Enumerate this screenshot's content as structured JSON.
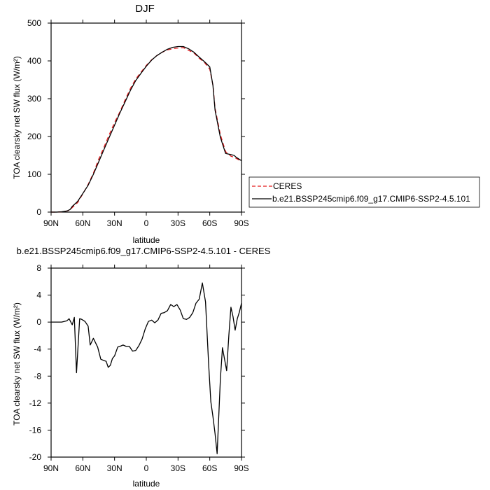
{
  "chart_data": [
    {
      "type": "line",
      "title": "DJF",
      "xlabel": "latitude",
      "ylabel": "TOA clearsky net SW flux (W/m²)",
      "xlim": [
        90,
        -90
      ],
      "ylim": [
        0,
        500
      ],
      "xtick_values": [
        90,
        60,
        30,
        0,
        -30,
        -60,
        -90
      ],
      "xtick_labels": [
        "90N",
        "60N",
        "30N",
        "0",
        "30S",
        "60S",
        "90S"
      ],
      "ytick_values": [
        0,
        100,
        200,
        300,
        400,
        500
      ],
      "ytick_labels": [
        "0",
        "100",
        "200",
        "300",
        "400",
        "500"
      ],
      "legend": {
        "placement": "right",
        "entries": [
          "CERES",
          "b.e21.BSSP245cmip6.f09_g17.CMIP6-SSP2-4.5.101"
        ]
      },
      "series": [
        {
          "name": "CERES",
          "color": "#e41a1c",
          "dash": true,
          "x": [
            90,
            85,
            80,
            75,
            72,
            70,
            65,
            60,
            55,
            50,
            45,
            40,
            35,
            30,
            25,
            20,
            15,
            10,
            5,
            0,
            -5,
            -10,
            -15,
            -20,
            -25,
            -30,
            -35,
            -40,
            -45,
            -50,
            -55,
            -60,
            -63,
            -65,
            -70,
            -75,
            -80,
            -83,
            -85,
            -90
          ],
          "y": [
            0,
            0,
            1,
            3,
            6,
            12,
            25,
            48,
            73,
            103,
            140,
            172,
            205,
            237,
            265,
            297,
            327,
            352,
            370,
            388,
            403,
            414,
            423,
            429,
            432,
            434,
            435,
            428,
            421,
            407,
            396,
            378,
            336,
            275,
            205,
            160,
            148,
            145,
            142,
            134
          ]
        },
        {
          "name": "b.e21.BSSP245cmip6.f09_g17.CMIP6-SSP2-4.5.101",
          "color": "#000000",
          "dash": false,
          "x": [
            90,
            85,
            80,
            75,
            72,
            70,
            65,
            60,
            55,
            50,
            45,
            40,
            35,
            30,
            25,
            20,
            15,
            10,
            5,
            0,
            -5,
            -10,
            -15,
            -20,
            -25,
            -30,
            -35,
            -40,
            -45,
            -50,
            -55,
            -60,
            -63,
            -65,
            -70,
            -75,
            -80,
            -83,
            -85,
            -90
          ],
          "y": [
            0,
            0,
            1,
            3,
            7,
            15,
            28,
            49,
            71,
            100,
            133,
            166,
            198,
            230,
            262,
            292,
            322,
            348,
            367,
            386,
            402,
            414,
            423,
            431,
            436,
            438,
            438,
            432,
            423,
            410,
            398,
            384,
            335,
            270,
            198,
            155,
            152,
            150,
            145,
            136
          ]
        }
      ]
    },
    {
      "type": "line",
      "title": "b.e21.BSSP245cmip6.f09_g17.CMIP6-SSP2-4.5.101 - CERES",
      "xlabel": "latitude",
      "ylabel": "TOA clearsky net SW flux (W/m²)",
      "xlim": [
        90,
        -90
      ],
      "ylim": [
        -20,
        8
      ],
      "xtick_values": [
        90,
        60,
        30,
        0,
        -30,
        -60,
        -90
      ],
      "xtick_labels": [
        "90N",
        "60N",
        "30N",
        "0",
        "30S",
        "60S",
        "90S"
      ],
      "ytick_values": [
        8,
        4,
        0,
        -4,
        -8,
        -12,
        -16,
        -20
      ],
      "ytick_labels": [
        "8",
        "4",
        "0",
        "-4",
        "-8",
        "-12",
        "-16",
        "-20"
      ],
      "series": [
        {
          "color": "#000000",
          "dash": false,
          "x": [
            90,
            80,
            75,
            73,
            70,
            68,
            66,
            63,
            61,
            58,
            55,
            53,
            50,
            46,
            43,
            40,
            38,
            36,
            34,
            32,
            30,
            27,
            25,
            22,
            19,
            16,
            13,
            10,
            7,
            4,
            1,
            -2,
            -5,
            -8,
            -11,
            -14,
            -17,
            -20,
            -23,
            -26,
            -29,
            -32,
            -35,
            -38,
            -41,
            -44,
            -47,
            -50,
            -53,
            -56,
            -59,
            -61,
            -63,
            -65,
            -67,
            -70,
            -72,
            -74,
            -76,
            -78,
            -80,
            -82,
            -84,
            -86,
            -88,
            -90
          ],
          "y": [
            0,
            0,
            0.2,
            0.5,
            -0.4,
            0.7,
            -7.5,
            0.5,
            0.4,
            0.1,
            -0.6,
            -3.4,
            -2.4,
            -3.7,
            -5.5,
            -5.7,
            -5.8,
            -6.7,
            -6.4,
            -5.4,
            -5.0,
            -3.7,
            -3.6,
            -3.4,
            -3.6,
            -3.6,
            -4.3,
            -4.2,
            -3.5,
            -2.5,
            -1.0,
            0.1,
            0.3,
            -0.1,
            0.3,
            1.3,
            1.4,
            1.7,
            2.6,
            2.3,
            2.6,
            1.8,
            0.5,
            0.4,
            0.7,
            1.4,
            2.8,
            3.4,
            5.8,
            3.0,
            -6.5,
            -11.8,
            -14,
            -16.5,
            -19.5,
            -8.5,
            -3.8,
            -5.5,
            -7.2,
            -2.0,
            2.2,
            0.8,
            -1.2,
            0.5,
            1.5,
            2.8
          ]
        }
      ]
    }
  ]
}
